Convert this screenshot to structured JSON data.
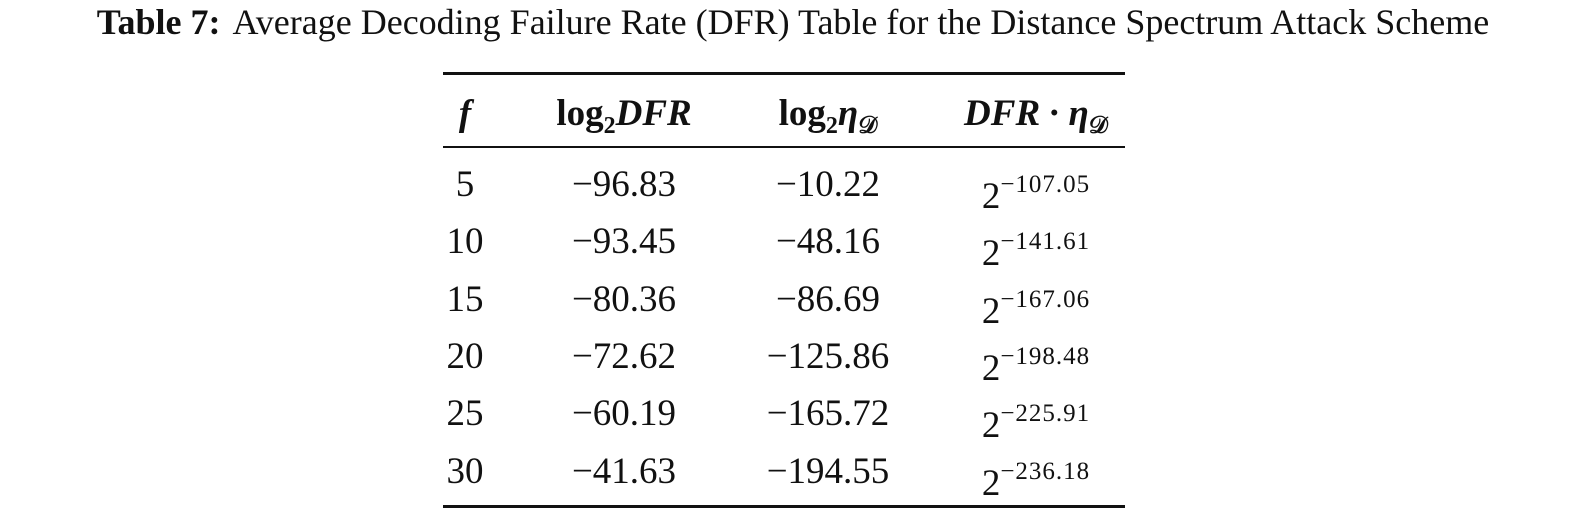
{
  "caption": {
    "label": "Table 7:",
    "text": "Average Decoding Failure Rate (DFR) Table for the Distance Spectrum Attack Scheme"
  },
  "table": {
    "headers": [
      [
        {
          "text": "f",
          "italic": true
        }
      ],
      [
        {
          "text": "log"
        },
        {
          "sub": "2"
        },
        {
          "text": "DFR",
          "italic": true
        }
      ],
      [
        {
          "text": "log"
        },
        {
          "sub": "2"
        },
        {
          "text": "η",
          "italic": true
        },
        {
          "sub": "𝒟"
        }
      ],
      [
        {
          "text": "DFR",
          "italic": true
        },
        {
          "text": "·"
        },
        {
          "text": "η",
          "italic": true
        },
        {
          "sub": "𝒟"
        }
      ]
    ],
    "rows": [
      [
        "5",
        "−96.83",
        "−10.22",
        {
          "base": "2",
          "exp": "−107.05"
        }
      ],
      [
        "10",
        "−93.45",
        "−48.16",
        {
          "base": "2",
          "exp": "−141.61"
        }
      ],
      [
        "15",
        "−80.36",
        "−86.69",
        {
          "base": "2",
          "exp": "−167.06"
        }
      ],
      [
        "20",
        "−72.62",
        "−125.86",
        {
          "base": "2",
          "exp": "−198.48"
        }
      ],
      [
        "25",
        "−60.19",
        "−165.72",
        {
          "base": "2",
          "exp": "−225.91"
        }
      ],
      [
        "30",
        "−41.63",
        "−194.55",
        {
          "base": "2",
          "exp": "−236.18"
        }
      ]
    ]
  }
}
